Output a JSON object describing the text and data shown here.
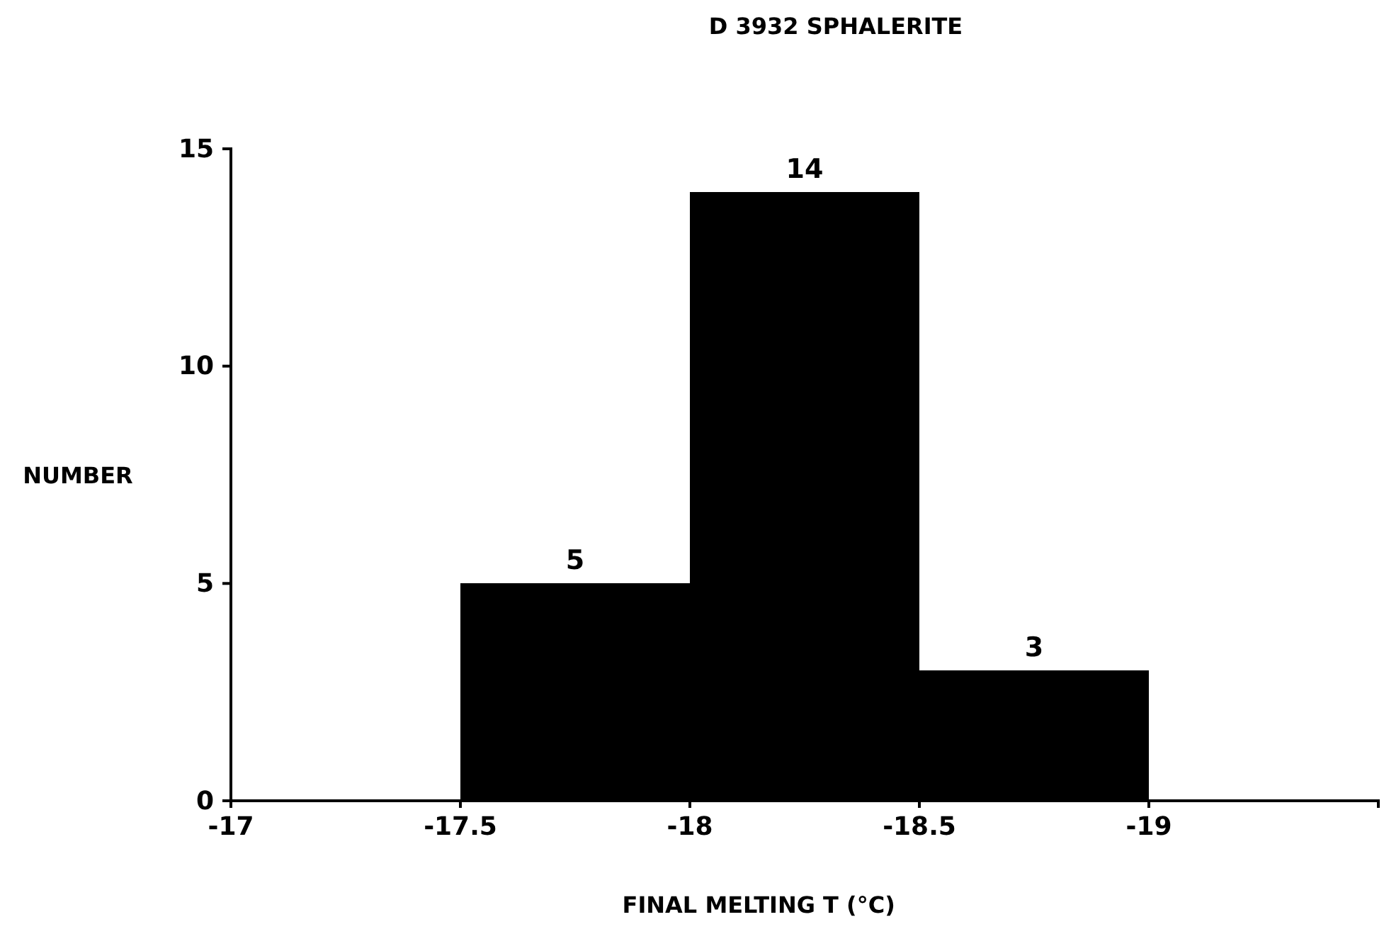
{
  "chart_data": {
    "type": "histogram",
    "title": "D 3932 SPHALERITE",
    "xlabel": "FINAL MELTING T (°C)",
    "ylabel": "NUMBER",
    "bins": [
      -17.5,
      -18,
      -18.5,
      -19
    ],
    "values": [
      5,
      14,
      3
    ],
    "color": "#000000",
    "xlim": [
      -17,
      -19.5
    ],
    "xticks": [
      -17,
      -17.5,
      -18,
      -18.5,
      -19
    ],
    "ylim": [
      0,
      15
    ],
    "yticks": [
      0,
      5,
      10,
      15
    ],
    "data_labels": true,
    "grid": false
  }
}
